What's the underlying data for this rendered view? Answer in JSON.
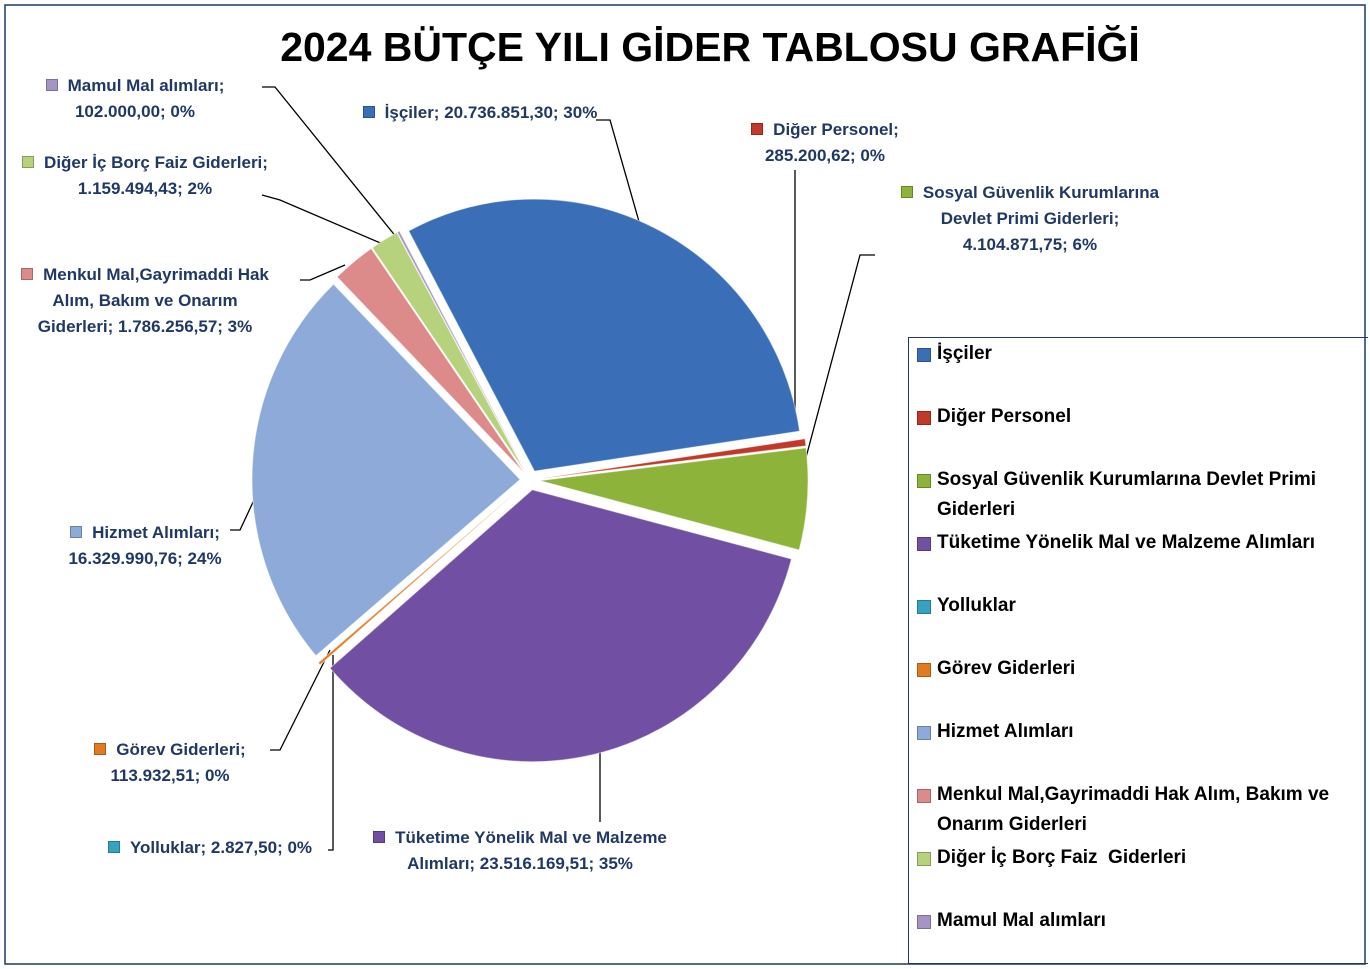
{
  "chart_data": {
    "type": "pie",
    "title": "2024 BÜTÇE YILI GİDER TABLOSU GRAFİĞİ",
    "categories": [
      "İşçiler",
      "Diğer Personel",
      "Sosyal Güvenlik Kurumlarına Devlet Primi Giderleri",
      "Tüketime Yönelik Mal ve Malzeme Alımları",
      "Yolluklar",
      "Görev Giderleri",
      "Hizmet Alımları",
      "Menkul Mal,Gayrimaddi Hak Alım, Bakım ve Onarım Giderleri",
      "Diğer İç Borç Faiz  Giderleri",
      "Mamul Mal alımları"
    ],
    "values": [
      20736851.3,
      285200.62,
      4104871.75,
      23516169.51,
      2827.5,
      113932.51,
      16329990.76,
      1786256.57,
      1159494.43,
      102000.0
    ],
    "value_labels": [
      "İşçiler; 20.736.851,30; 30%",
      "Diğer Personel; 285.200,62; 0%",
      "Sosyal Güvenlik Kurumlarına Devlet Primi Giderleri; 4.104.871,75; 6%",
      "Tüketime Yönelik Mal ve Malzeme Alımları; 23.516.169,51; 35%",
      "Yolluklar; 2.827,50; 0%",
      "Görev Giderleri; 113.932,51; 0%",
      "Hizmet Alımları; 16.329.990,76; 24%",
      "Menkul Mal,Gayrimaddi Hak Alım, Bakım ve Onarım Giderleri; 1.786.256,57; 3%",
      "Diğer İç Borç Faiz Giderleri; 1.159.494,43; 2%",
      "Mamul Mal alımları; 102.000,00; 0%"
    ],
    "colors": [
      "#3a6fb8",
      "#c0392b",
      "#8db33a",
      "#7150a3",
      "#36a2c0",
      "#e07b24",
      "#8eaad8",
      "#dc8a8a",
      "#b6d27c",
      "#a794c6"
    ],
    "legend": "right"
  }
}
